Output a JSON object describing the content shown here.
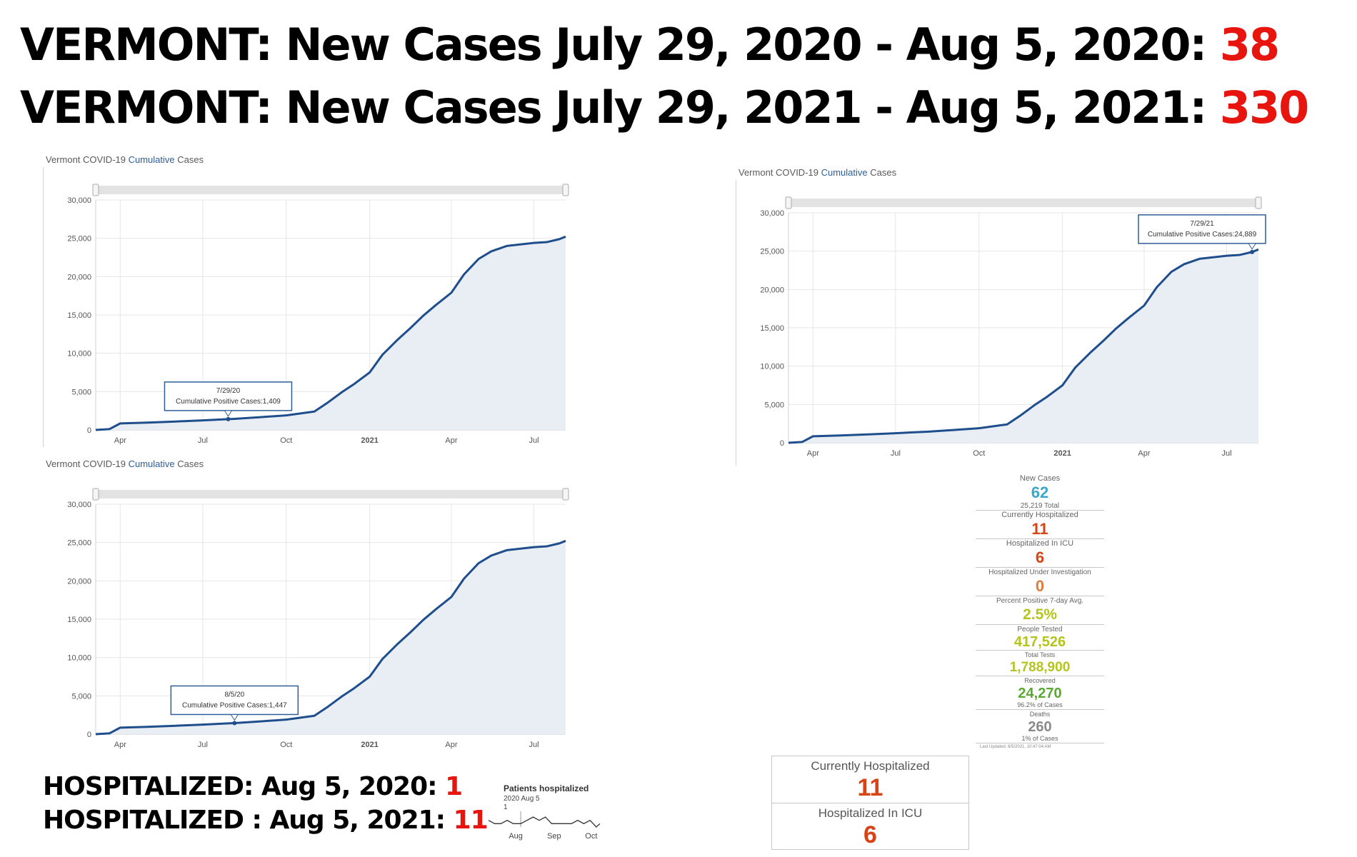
{
  "headlines": [
    {
      "text": "VERMONT: New Cases July 29, 2020 - Aug 5, 2020: ",
      "value": "38"
    },
    {
      "text": "VERMONT: New Cases July 29, 2021 - Aug 5, 2021: ",
      "value": "330"
    }
  ],
  "colors": {
    "accent_red": "#e8140e",
    "line": "#1f4e8c",
    "fill": "#e9edf4",
    "dash_blue": "#3ba7c9",
    "dash_orange": "#d84315",
    "dash_yellow": "#b5c41d",
    "dash_green": "#5aa832",
    "dash_gray": "#8a8a8a"
  },
  "chart_data": [
    {
      "type": "area",
      "title_prefix": "Vermont COVID-19 ",
      "title_accent": "Cumulative",
      "title_suffix": " Cases",
      "ylim": [
        0,
        30000
      ],
      "y_ticks": [
        "0",
        "5,000",
        "10,000",
        "15,000",
        "20,000",
        "25,000",
        "30,000"
      ],
      "x_ticks": [
        "Apr",
        "Jul",
        "Oct",
        "2021",
        "Apr",
        "Jul"
      ],
      "x_range": [
        "2020-03-05",
        "2021-08-05"
      ],
      "series": [
        {
          "x": [
            "2020-03-05",
            "2020-03-20",
            "2020-04-01",
            "2020-05-01",
            "2020-06-01",
            "2020-07-01",
            "2020-07-29",
            "2020-08-05",
            "2020-09-01",
            "2020-10-01",
            "2020-11-01",
            "2020-11-15",
            "2020-12-01",
            "2020-12-15",
            "2021-01-01",
            "2021-01-15",
            "2021-02-01",
            "2021-02-15",
            "2021-03-01",
            "2021-03-15",
            "2021-04-01",
            "2021-04-15",
            "2021-05-01",
            "2021-05-15",
            "2021-06-01",
            "2021-07-01",
            "2021-07-15",
            "2021-07-29",
            "2021-08-05"
          ],
          "y": [
            0,
            100,
            850,
            950,
            1100,
            1250,
            1409,
            1447,
            1650,
            1900,
            2400,
            3500,
            4900,
            6000,
            7500,
            9800,
            11800,
            13300,
            14900,
            16300,
            17900,
            20300,
            22300,
            23300,
            24000,
            24400,
            24500,
            24889,
            25219
          ]
        }
      ],
      "tooltip": {
        "date": "7/29/20",
        "text": "Cumulative Positive Cases:1,409"
      }
    },
    {
      "type": "area",
      "title_prefix": "Vermont COVID-19 ",
      "title_accent": "Cumulative",
      "title_suffix": " Cases",
      "ylim": [
        0,
        30000
      ],
      "y_ticks": [
        "0",
        "5,000",
        "10,000",
        "15,000",
        "20,000",
        "25,000",
        "30,000"
      ],
      "x_ticks": [
        "Apr",
        "Jul",
        "Oct",
        "2021",
        "Apr",
        "Jul"
      ],
      "x_range": [
        "2020-03-05",
        "2021-08-05"
      ],
      "series": [
        {
          "x": [
            "2020-03-05",
            "2020-03-20",
            "2020-04-01",
            "2020-05-01",
            "2020-06-01",
            "2020-07-01",
            "2020-07-29",
            "2020-08-05",
            "2020-09-01",
            "2020-10-01",
            "2020-11-01",
            "2020-11-15",
            "2020-12-01",
            "2020-12-15",
            "2021-01-01",
            "2021-01-15",
            "2021-02-01",
            "2021-02-15",
            "2021-03-01",
            "2021-03-15",
            "2021-04-01",
            "2021-04-15",
            "2021-05-01",
            "2021-05-15",
            "2021-06-01",
            "2021-07-01",
            "2021-07-15",
            "2021-07-29",
            "2021-08-05"
          ],
          "y": [
            0,
            100,
            850,
            950,
            1100,
            1250,
            1409,
            1447,
            1650,
            1900,
            2400,
            3500,
            4900,
            6000,
            7500,
            9800,
            11800,
            13300,
            14900,
            16300,
            17900,
            20300,
            22300,
            23300,
            24000,
            24400,
            24500,
            24889,
            25219
          ]
        }
      ],
      "tooltip": {
        "date": "7/29/21",
        "text": "Cumulative Positive Cases:24,889"
      }
    },
    {
      "type": "area",
      "title_prefix": "Vermont COVID-19 ",
      "title_accent": "Cumulative",
      "title_suffix": " Cases",
      "ylim": [
        0,
        30000
      ],
      "y_ticks": [
        "0",
        "5,000",
        "10,000",
        "15,000",
        "20,000",
        "25,000",
        "30,000"
      ],
      "x_ticks": [
        "Apr",
        "Jul",
        "Oct",
        "2021",
        "Apr",
        "Jul"
      ],
      "x_range": [
        "2020-03-05",
        "2021-08-05"
      ],
      "series": [
        {
          "x": [
            "2020-03-05",
            "2020-03-20",
            "2020-04-01",
            "2020-05-01",
            "2020-06-01",
            "2020-07-01",
            "2020-07-29",
            "2020-08-05",
            "2020-09-01",
            "2020-10-01",
            "2020-11-01",
            "2020-11-15",
            "2020-12-01",
            "2020-12-15",
            "2021-01-01",
            "2021-01-15",
            "2021-02-01",
            "2021-02-15",
            "2021-03-01",
            "2021-03-15",
            "2021-04-01",
            "2021-04-15",
            "2021-05-01",
            "2021-05-15",
            "2021-06-01",
            "2021-07-01",
            "2021-07-15",
            "2021-07-29",
            "2021-08-05"
          ],
          "y": [
            0,
            100,
            850,
            950,
            1100,
            1250,
            1409,
            1447,
            1650,
            1900,
            2400,
            3500,
            4900,
            6000,
            7500,
            9800,
            11800,
            13300,
            14900,
            16300,
            17900,
            20300,
            22300,
            23300,
            24000,
            24400,
            24500,
            24889,
            25219
          ]
        }
      ],
      "tooltip": {
        "date": "8/5/20",
        "text": "Cumulative Positive Cases:1,447"
      }
    },
    {
      "type": "line",
      "title": "Patients hospitalized",
      "tooltip_date": "2020 Aug 5",
      "tooltip_value": "1",
      "x_ticks": [
        "Aug",
        "Sep",
        "Oct"
      ],
      "x_range": [
        "2020-07-10",
        "2020-10-08"
      ],
      "series": [
        {
          "x": [
            "2020-07-10",
            "2020-07-15",
            "2020-07-20",
            "2020-07-25",
            "2020-07-30",
            "2020-08-05",
            "2020-08-10",
            "2020-08-15",
            "2020-08-20",
            "2020-08-25",
            "2020-08-30",
            "2020-09-05",
            "2020-09-10",
            "2020-09-15",
            "2020-09-20",
            "2020-09-25",
            "2020-09-30",
            "2020-10-05",
            "2020-10-08"
          ],
          "y": [
            2,
            1,
            1,
            2,
            1,
            1,
            2,
            3,
            2,
            3,
            1,
            1,
            1,
            1,
            2,
            1,
            2,
            0,
            1
          ]
        }
      ]
    }
  ],
  "dashboard": {
    "new_cases_label": "New Cases",
    "new_cases_value": "62",
    "new_cases_sub": "25,219 Total",
    "hosp_label": "Currently Hospitalized",
    "hosp_value": "11",
    "icu_label": "Hospitalized In ICU",
    "icu_value": "6",
    "piu_label": "Hospitalized Under Investigation",
    "piu_value": "0",
    "pct_label": "Percent Positive 7-day Avg.",
    "pct_value": "2.5%",
    "tested_label": "People Tested",
    "tested_value": "417,526",
    "tests_label": "Total Tests",
    "tests_value": "1,788,900",
    "recovered_label": "Recovered",
    "recovered_value": "24,270",
    "recovered_sub": "96.2% of Cases",
    "deaths_label": "Deaths",
    "deaths_value": "260",
    "deaths_sub": "1% of Cases",
    "updated": "Last Updated: 8/5/2021, 10:47:04 AM"
  },
  "boxes": {
    "hosp_label": "Currently Hospitalized",
    "hosp_value": "11",
    "icu_label": "Hospitalized In ICU",
    "icu_value": "6"
  },
  "hospitalized": [
    {
      "text": "HOSPITALIZED: Aug 5, 2020: ",
      "value": "1"
    },
    {
      "text": "HOSPITALIZED : Aug 5, 2021: ",
      "value": "11"
    }
  ]
}
